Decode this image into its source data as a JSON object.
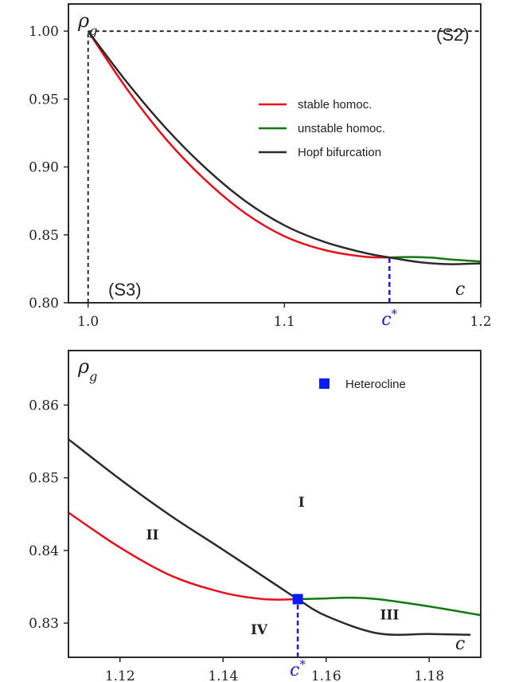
{
  "colors": {
    "stable": "#e8101b",
    "unstable": "#117a0f",
    "hopf": "#2b2b2b",
    "cstar": "#1a1ad6",
    "heterocline": "#0a1bf5"
  },
  "chart_data": [
    {
      "type": "line",
      "ylabel": "ρ_g",
      "xlabel": "c",
      "xlim": [
        0.99,
        1.2
      ],
      "ylim": [
        0.8,
        1.02
      ],
      "xticks": [
        1.0,
        1.1,
        1.2
      ],
      "yticks": [
        0.8,
        0.85,
        0.9,
        0.95,
        1.0
      ],
      "xtick_labels": [
        "1.0",
        "1.1",
        "1.2"
      ],
      "ytick_labels": [
        "0.80",
        "0.85",
        "0.90",
        "0.95",
        "1.00"
      ],
      "corner_labels": [
        {
          "text": "(S2)",
          "position": "top-right"
        },
        {
          "text": "(S3)",
          "position": "bottom-left"
        }
      ],
      "cstar_label": "c*",
      "cstar": 1.1535,
      "legend_position": "top-right",
      "series": [
        {
          "name": "stable homoc.",
          "color_key": "stable",
          "x": [
            1.0,
            1.02,
            1.04,
            1.06,
            1.08,
            1.1,
            1.12,
            1.14,
            1.1535
          ],
          "y": [
            1.0,
            0.957,
            0.92,
            0.89,
            0.866,
            0.849,
            0.839,
            0.834,
            0.8333
          ]
        },
        {
          "name": "unstable homoc.",
          "color_key": "unstable",
          "x": [
            1.1535,
            1.165,
            1.175,
            1.185,
            1.2
          ],
          "y": [
            0.8333,
            0.8337,
            0.8332,
            0.8318,
            0.8304
          ]
        },
        {
          "name": "Hopf bifurcation",
          "color_key": "hopf",
          "x": [
            1.0,
            1.02,
            1.04,
            1.06,
            1.08,
            1.1,
            1.12,
            1.14,
            1.1535,
            1.17,
            1.185,
            1.2
          ],
          "y": [
            1.0,
            0.962,
            0.928,
            0.899,
            0.875,
            0.857,
            0.845,
            0.837,
            0.8333,
            0.8297,
            0.8284,
            0.829
          ]
        }
      ],
      "guides": [
        {
          "style": "dashed",
          "color_key": "hopf",
          "x": [
            1.0,
            1.2
          ],
          "y": [
            1.0,
            1.0
          ]
        },
        {
          "style": "dashed",
          "color_key": "hopf",
          "x": [
            1.0,
            1.0
          ],
          "y": [
            0.8,
            1.0
          ]
        },
        {
          "style": "dashed",
          "color_key": "cstar",
          "x": [
            1.1535,
            1.1535
          ],
          "y": [
            0.8,
            0.8333
          ]
        }
      ]
    },
    {
      "type": "line",
      "ylabel": "ρ_g",
      "xlabel": "c",
      "xlim": [
        1.11,
        1.19
      ],
      "ylim": [
        0.8253,
        0.8675
      ],
      "xticks": [
        1.12,
        1.14,
        1.16,
        1.18
      ],
      "yticks": [
        0.83,
        0.84,
        0.85,
        0.86
      ],
      "xtick_labels": [
        "1.12",
        "1.14",
        "1.16",
        "1.18"
      ],
      "ytick_labels": [
        "0.83",
        "0.84",
        "0.85",
        "0.86"
      ],
      "cstar_label": "c*",
      "cstar": 1.1545,
      "legend_position": "top-right",
      "legend": [
        {
          "name": "Heterocline",
          "marker": "square",
          "color_key": "heterocline"
        }
      ],
      "heterocline_point": {
        "x": 1.1545,
        "y": 0.8333
      },
      "regions": [
        {
          "label": "I",
          "x": 1.1552,
          "y": 0.846
        },
        {
          "label": "II",
          "x": 1.1263,
          "y": 0.8415
        },
        {
          "label": "III",
          "x": 1.1723,
          "y": 0.8305
        },
        {
          "label": "IV",
          "x": 1.147,
          "y": 0.8285
        }
      ],
      "series": [
        {
          "name": "stable homoc.",
          "color_key": "stable",
          "x": [
            1.11,
            1.12,
            1.13,
            1.14,
            1.148,
            1.1545
          ],
          "y": [
            0.8452,
            0.8404,
            0.8365,
            0.8342,
            0.8333,
            0.8333
          ]
        },
        {
          "name": "unstable homoc.",
          "color_key": "unstable",
          "x": [
            1.1545,
            1.16,
            1.165,
            1.17,
            1.18,
            1.19
          ],
          "y": [
            0.8333,
            0.8334,
            0.8335,
            0.8333,
            0.8323,
            0.8311
          ]
        },
        {
          "name": "Hopf bifurcation",
          "color_key": "hopf",
          "x": [
            1.11,
            1.12,
            1.13,
            1.14,
            1.15,
            1.1545,
            1.16,
            1.17,
            1.18,
            1.188
          ],
          "y": [
            0.8553,
            0.8498,
            0.8447,
            0.8401,
            0.8354,
            0.8333,
            0.831,
            0.8286,
            0.8285,
            0.8284
          ]
        }
      ],
      "guides": [
        {
          "style": "dashed",
          "color_key": "cstar",
          "x": [
            1.1545,
            1.1545
          ],
          "y": [
            0.8253,
            0.8333
          ]
        }
      ]
    }
  ]
}
